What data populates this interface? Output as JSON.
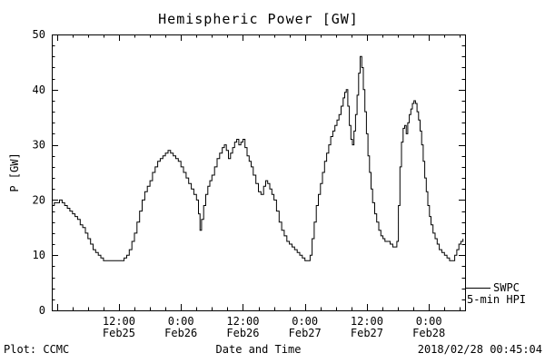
{
  "chart_data": {
    "type": "line",
    "title": "Hemispheric Power [GW]",
    "xlabel": "Date and Time",
    "ylabel": "P [GW]",
    "background": "#ffffff",
    "grid": false,
    "legend_position": "right-bottom-outside",
    "legend": {
      "series": "SWPC",
      "detail": "5-min HPI"
    },
    "x_axis": {
      "unit": "hours since 2018-02-25 00:00",
      "lim": [
        -1,
        79
      ],
      "major_step": 12,
      "minor_step": 3,
      "ticks": [
        {
          "t": 12,
          "time": "12:00",
          "date": "Feb25"
        },
        {
          "t": 24,
          "time": "0:00",
          "date": "Feb26"
        },
        {
          "t": 36,
          "time": "12:00",
          "date": "Feb26"
        },
        {
          "t": 48,
          "time": "0:00",
          "date": "Feb27"
        },
        {
          "t": 60,
          "time": "12:00",
          "date": "Feb27"
        },
        {
          "t": 72,
          "time": "0:00",
          "date": "Feb28"
        }
      ]
    },
    "y_axis": {
      "lim": [
        0,
        50
      ],
      "major_step": 10,
      "minor_step": 2,
      "ticks": [
        0,
        10,
        20,
        30,
        40,
        50
      ]
    },
    "series": [
      {
        "name": "SWPC 5-min HPI",
        "color": "#000000",
        "step": true,
        "points": [
          [
            -1,
            19
          ],
          [
            -0.5,
            19.5
          ],
          [
            0,
            19.5
          ],
          [
            0.5,
            20
          ],
          [
            1,
            19.5
          ],
          [
            1.5,
            19
          ],
          [
            2,
            18.5
          ],
          [
            2.5,
            18
          ],
          [
            3,
            17.5
          ],
          [
            3.5,
            17
          ],
          [
            4,
            16.5
          ],
          [
            4.5,
            15.5
          ],
          [
            5,
            15
          ],
          [
            5.5,
            14
          ],
          [
            6,
            13
          ],
          [
            6.5,
            12
          ],
          [
            7,
            11
          ],
          [
            7.5,
            10.5
          ],
          [
            8,
            10
          ],
          [
            8.5,
            9.5
          ],
          [
            9,
            9
          ],
          [
            9.5,
            9
          ],
          [
            10,
            9
          ],
          [
            10.5,
            9
          ],
          [
            11,
            9
          ],
          [
            11.5,
            9
          ],
          [
            12,
            9
          ],
          [
            12.5,
            9
          ],
          [
            13,
            9.5
          ],
          [
            13.5,
            10
          ],
          [
            14,
            11
          ],
          [
            14.5,
            12.5
          ],
          [
            15,
            14
          ],
          [
            15.5,
            16
          ],
          [
            16,
            18
          ],
          [
            16.5,
            20
          ],
          [
            17,
            21.5
          ],
          [
            17.5,
            22.5
          ],
          [
            18,
            23.5
          ],
          [
            18.5,
            25
          ],
          [
            19,
            26
          ],
          [
            19.5,
            27
          ],
          [
            20,
            27.5
          ],
          [
            20.5,
            28
          ],
          [
            21,
            28.5
          ],
          [
            21.5,
            29
          ],
          [
            22,
            28.5
          ],
          [
            22.5,
            28
          ],
          [
            23,
            27.5
          ],
          [
            23.5,
            27
          ],
          [
            24,
            26
          ],
          [
            24.5,
            25
          ],
          [
            25,
            24
          ],
          [
            25.5,
            23
          ],
          [
            26,
            22
          ],
          [
            26.5,
            21
          ],
          [
            27,
            20
          ],
          [
            27.4,
            17.5
          ],
          [
            27.7,
            14.5
          ],
          [
            28,
            16.5
          ],
          [
            28.4,
            19
          ],
          [
            28.8,
            21
          ],
          [
            29.2,
            22.5
          ],
          [
            29.6,
            23.5
          ],
          [
            30,
            24.5
          ],
          [
            30.5,
            26
          ],
          [
            31,
            27.5
          ],
          [
            31.5,
            28.5
          ],
          [
            32,
            29.5
          ],
          [
            32.4,
            30
          ],
          [
            32.8,
            29
          ],
          [
            33.2,
            27.5
          ],
          [
            33.6,
            28.5
          ],
          [
            34,
            29.5
          ],
          [
            34.4,
            30.5
          ],
          [
            34.8,
            31
          ],
          [
            35.2,
            30
          ],
          [
            35.6,
            30.5
          ],
          [
            36,
            31
          ],
          [
            36.4,
            29.5
          ],
          [
            36.8,
            28
          ],
          [
            37.2,
            27
          ],
          [
            37.6,
            26
          ],
          [
            38,
            24.5
          ],
          [
            38.5,
            23
          ],
          [
            39,
            21.5
          ],
          [
            39.5,
            21
          ],
          [
            40,
            22.5
          ],
          [
            40.4,
            23.5
          ],
          [
            40.8,
            23
          ],
          [
            41.2,
            22
          ],
          [
            41.6,
            21
          ],
          [
            42,
            20
          ],
          [
            42.5,
            18
          ],
          [
            43,
            16
          ],
          [
            43.5,
            14.5
          ],
          [
            44,
            13.5
          ],
          [
            44.5,
            12.5
          ],
          [
            45,
            12
          ],
          [
            45.5,
            11.5
          ],
          [
            46,
            11
          ],
          [
            46.5,
            10.5
          ],
          [
            47,
            10
          ],
          [
            47.5,
            9.5
          ],
          [
            48,
            9
          ],
          [
            48.5,
            9
          ],
          [
            49,
            10
          ],
          [
            49.4,
            13
          ],
          [
            49.8,
            16
          ],
          [
            50.2,
            19
          ],
          [
            50.6,
            21
          ],
          [
            51,
            23
          ],
          [
            51.4,
            25
          ],
          [
            51.8,
            27
          ],
          [
            52.2,
            28.5
          ],
          [
            52.6,
            30
          ],
          [
            53,
            31.5
          ],
          [
            53.4,
            32.5
          ],
          [
            53.8,
            33.5
          ],
          [
            54.2,
            34.5
          ],
          [
            54.6,
            35.5
          ],
          [
            55,
            37
          ],
          [
            55.4,
            38.5
          ],
          [
            55.7,
            39.5
          ],
          [
            56,
            40
          ],
          [
            56.3,
            37
          ],
          [
            56.6,
            33.5
          ],
          [
            56.9,
            31
          ],
          [
            57.2,
            30
          ],
          [
            57.5,
            32.5
          ],
          [
            57.8,
            35.5
          ],
          [
            58.1,
            39
          ],
          [
            58.4,
            43
          ],
          [
            58.7,
            46
          ],
          [
            59,
            44
          ],
          [
            59.3,
            40
          ],
          [
            59.6,
            36
          ],
          [
            59.9,
            32
          ],
          [
            60.2,
            28
          ],
          [
            60.5,
            25
          ],
          [
            60.8,
            22
          ],
          [
            61.1,
            19.5
          ],
          [
            61.5,
            17.5
          ],
          [
            61.9,
            16
          ],
          [
            62.3,
            14.5
          ],
          [
            62.7,
            13.5
          ],
          [
            63.1,
            13
          ],
          [
            63.5,
            12.5
          ],
          [
            64,
            12.5
          ],
          [
            64.5,
            12
          ],
          [
            65,
            11.5
          ],
          [
            65.5,
            11.5
          ],
          [
            65.8,
            12.5
          ],
          [
            66.1,
            19
          ],
          [
            66.4,
            26
          ],
          [
            66.7,
            30.5
          ],
          [
            67,
            33
          ],
          [
            67.3,
            33.5
          ],
          [
            67.6,
            32
          ],
          [
            67.9,
            34
          ],
          [
            68.2,
            35.5
          ],
          [
            68.5,
            36.5
          ],
          [
            68.8,
            37.5
          ],
          [
            69.1,
            38
          ],
          [
            69.4,
            37.5
          ],
          [
            69.7,
            36
          ],
          [
            70,
            34.5
          ],
          [
            70.3,
            32.5
          ],
          [
            70.6,
            30
          ],
          [
            70.9,
            27
          ],
          [
            71.2,
            24
          ],
          [
            71.5,
            21.5
          ],
          [
            71.8,
            19
          ],
          [
            72.1,
            17
          ],
          [
            72.4,
            15.5
          ],
          [
            72.8,
            14
          ],
          [
            73.2,
            13
          ],
          [
            73.6,
            12
          ],
          [
            74,
            11
          ],
          [
            74.5,
            10.5
          ],
          [
            75,
            10
          ],
          [
            75.5,
            9.5
          ],
          [
            76,
            9
          ],
          [
            76.5,
            9
          ],
          [
            77,
            10
          ],
          [
            77.4,
            11
          ],
          [
            77.8,
            12
          ],
          [
            78.2,
            12.5
          ],
          [
            78.6,
            13
          ]
        ]
      }
    ]
  },
  "footer": {
    "left": "Plot: CCMC",
    "right": "2018/02/28 00:45:04"
  }
}
